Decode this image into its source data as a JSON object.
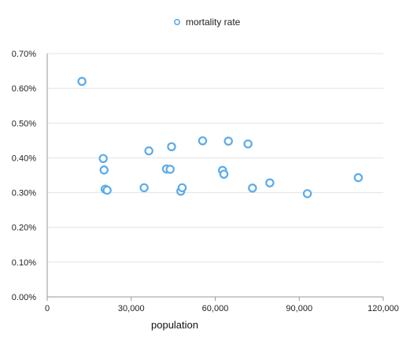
{
  "chart_data": {
    "type": "scatter",
    "title": "",
    "xlabel": "population",
    "ylabel": "",
    "xlim": [
      0,
      120000
    ],
    "ylim": [
      0,
      0.007
    ],
    "x_ticks": [
      {
        "value": 0,
        "label": "0"
      },
      {
        "value": 30000,
        "label": "30,000"
      },
      {
        "value": 60000,
        "label": "60,000"
      },
      {
        "value": 90000,
        "label": "90,000"
      },
      {
        "value": 120000,
        "label": "120,000"
      }
    ],
    "y_ticks": [
      {
        "value": 0,
        "label": "0.00%"
      },
      {
        "value": 0.001,
        "label": "0.10%"
      },
      {
        "value": 0.002,
        "label": "0.20%"
      },
      {
        "value": 0.003,
        "label": "0.30%"
      },
      {
        "value": 0.004,
        "label": "0.40%"
      },
      {
        "value": 0.005,
        "label": "0.50%"
      },
      {
        "value": 0.006,
        "label": "0.60%"
      },
      {
        "value": 0.007,
        "label": "0.70%"
      }
    ],
    "grid": {
      "horizontal": true,
      "vertical": false
    },
    "legend": {
      "position": "top-center"
    },
    "series": [
      {
        "name": "mortality rate",
        "color": "#5aabeb",
        "points": [
          {
            "x": 12400,
            "y": 0.0062
          },
          {
            "x": 20000,
            "y": 0.00398
          },
          {
            "x": 20300,
            "y": 0.00365
          },
          {
            "x": 20700,
            "y": 0.0031
          },
          {
            "x": 21400,
            "y": 0.00307
          },
          {
            "x": 34600,
            "y": 0.00314
          },
          {
            "x": 36300,
            "y": 0.0042
          },
          {
            "x": 42600,
            "y": 0.00368
          },
          {
            "x": 43900,
            "y": 0.00367
          },
          {
            "x": 44400,
            "y": 0.00432
          },
          {
            "x": 47700,
            "y": 0.00304
          },
          {
            "x": 48200,
            "y": 0.00314
          },
          {
            "x": 55500,
            "y": 0.00449
          },
          {
            "x": 62600,
            "y": 0.00364
          },
          {
            "x": 63100,
            "y": 0.00353
          },
          {
            "x": 64700,
            "y": 0.00448
          },
          {
            "x": 71700,
            "y": 0.0044
          },
          {
            "x": 73300,
            "y": 0.00313
          },
          {
            "x": 79500,
            "y": 0.00328
          },
          {
            "x": 92900,
            "y": 0.00297
          },
          {
            "x": 111100,
            "y": 0.00343
          }
        ]
      }
    ]
  }
}
